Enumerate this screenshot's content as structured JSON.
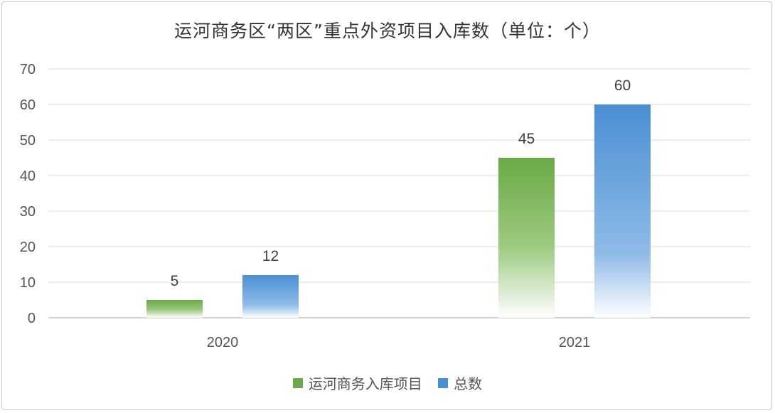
{
  "chart_data": {
    "type": "bar",
    "title": "运河商务区“两区”重点外资项目入库数（单位：个）",
    "categories": [
      "2020",
      "2021"
    ],
    "series": [
      {
        "name": "运河商务入库项目",
        "values": [
          5,
          45
        ],
        "color": "#6aaa45"
      },
      {
        "name": "总数",
        "values": [
          12,
          60
        ],
        "color": "#4a8fd4"
      }
    ],
    "ylim": [
      0,
      70
    ],
    "yticks": [
      0,
      10,
      20,
      30,
      40,
      50,
      60,
      70
    ],
    "grid": true,
    "legend_position": "bottom"
  }
}
